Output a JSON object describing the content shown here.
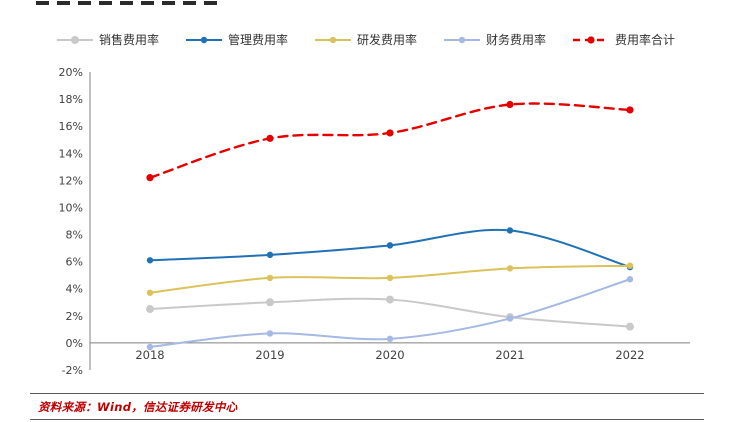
{
  "source_note": "资料来源：Wind，信达证券研发中心",
  "chart_data": {
    "type": "line",
    "title": "",
    "categories": [
      "2018",
      "2019",
      "2020",
      "2021",
      "2022"
    ],
    "series": [
      {
        "name": "销售费用率",
        "color": "#c9c9c9",
        "dashed": false,
        "marker_r": 4,
        "values": [
          2.5,
          3.0,
          3.2,
          1.9,
          1.2
        ]
      },
      {
        "name": "管理费用率",
        "color": "#2171b5",
        "dashed": false,
        "marker_r": 3.2,
        "values": [
          6.1,
          6.5,
          7.2,
          8.3,
          5.6
        ]
      },
      {
        "name": "研发费用率",
        "color": "#dcc25a",
        "dashed": false,
        "marker_r": 3.2,
        "values": [
          3.7,
          4.8,
          4.8,
          5.5,
          5.7
        ]
      },
      {
        "name": "财务费用率",
        "color": "#a4b9e4",
        "dashed": false,
        "marker_r": 3.2,
        "values": [
          -0.3,
          0.7,
          0.3,
          1.8,
          4.7
        ]
      },
      {
        "name": "费用率合计",
        "color": "#e60000",
        "dashed": true,
        "marker_r": 3.6,
        "values": [
          12.2,
          15.1,
          15.5,
          17.6,
          17.2
        ]
      }
    ],
    "xlabel": "",
    "ylabel": "",
    "ylim": [
      -2,
      20
    ],
    "ytick_step": 2,
    "ytick_format": "percent",
    "legend_position": "top",
    "grid": false,
    "axis_color": "#808080",
    "tick_label_color": "#404040"
  }
}
